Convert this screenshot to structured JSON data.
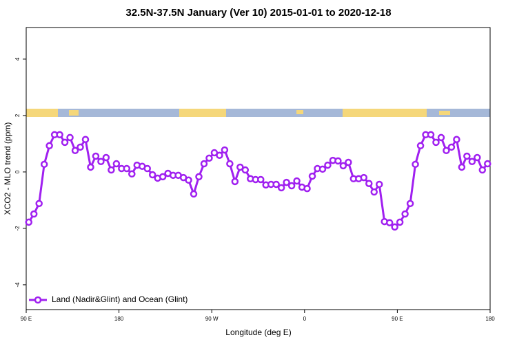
{
  "chart_data": {
    "type": "line",
    "title": "32.5N-37.5N January (Ver 10)   2015-01-01 to 2020-12-18",
    "x_label": "Longitude (deg E)",
    "y_label": "XCO2 - MLO trend (ppm)",
    "x": [
      92.5,
      97.5,
      102.5,
      107.5,
      112.5,
      117.5,
      122.5,
      127.5,
      132.5,
      137.5,
      142.5,
      147.5,
      152.5,
      157.5,
      162.5,
      167.5,
      172.5,
      177.5,
      182.5,
      187.5,
      192.5,
      197.5,
      202.5,
      207.5,
      212.5,
      217.5,
      222.5,
      227.5,
      232.5,
      237.5,
      242.5,
      247.5,
      252.5,
      257.5,
      262.5,
      267.5,
      272.5,
      277.5,
      282.5,
      287.5,
      292.5,
      297.5,
      302.5,
      307.5,
      312.5,
      317.5,
      322.5,
      327.5,
      332.5,
      337.5,
      342.5,
      347.5,
      352.5,
      357.5,
      362.5,
      367.5,
      372.5,
      377.5,
      382.5,
      387.5,
      392.5,
      397.5,
      402.5,
      407.5,
      412.5,
      417.5,
      422.5,
      427.5,
      432.5,
      437.5,
      442.5,
      447.5,
      452.5,
      457.5,
      462.5,
      467.5,
      472.5,
      477.5,
      482.5,
      487.5,
      492.5,
      497.5,
      502.5,
      507.5,
      512.5,
      517.5,
      522.5,
      527.5,
      532.5,
      537.5
    ],
    "series": [
      {
        "name": "Land (Nadir&Glint) and Ocean (Glint)",
        "color": "#a020f0",
        "values": [
          -1.78,
          -1.49,
          -1.12,
          0.27,
          0.93,
          1.32,
          1.32,
          1.05,
          1.22,
          0.76,
          0.88,
          1.15,
          0.17,
          0.56,
          0.37,
          0.51,
          0.07,
          0.29,
          0.12,
          0.12,
          -0.07,
          0.24,
          0.2,
          0.12,
          -0.1,
          -0.22,
          -0.17,
          -0.05,
          -0.12,
          -0.12,
          -0.2,
          -0.29,
          -0.78,
          -0.17,
          0.29,
          0.49,
          0.68,
          0.59,
          0.78,
          0.29,
          -0.34,
          0.17,
          0.07,
          -0.24,
          -0.27,
          -0.27,
          -0.46,
          -0.44,
          -0.44,
          -0.56,
          -0.37,
          -0.49,
          -0.32,
          -0.54,
          -0.59,
          -0.15,
          0.12,
          0.1,
          0.24,
          0.41,
          0.39,
          0.22,
          0.34,
          -0.24,
          -0.24,
          -0.2,
          -0.41,
          -0.71,
          -0.44,
          -1.76,
          -1.8,
          -1.95,
          -1.78,
          -1.49,
          -1.12,
          0.27,
          0.93,
          1.32,
          1.32,
          1.05,
          1.22,
          0.76,
          0.88,
          1.15,
          0.17,
          0.56,
          0.37,
          0.51,
          0.07,
          0.29
        ]
      }
    ],
    "xlim": [
      90,
      540
    ],
    "xticks": [
      {
        "value": 90,
        "label": "90 E"
      },
      180,
      {
        "value": 270,
        "label": "90 W"
      },
      {
        "value": 360,
        "label": "0"
      },
      {
        "value": 450,
        "label": "90 E"
      },
      {
        "value": 540,
        "label": "180"
      }
    ],
    "ylim": [
      -4.88,
      5.12
    ],
    "yticks": [
      -4,
      -2,
      0,
      2,
      4
    ],
    "legend": "bottom-left"
  }
}
